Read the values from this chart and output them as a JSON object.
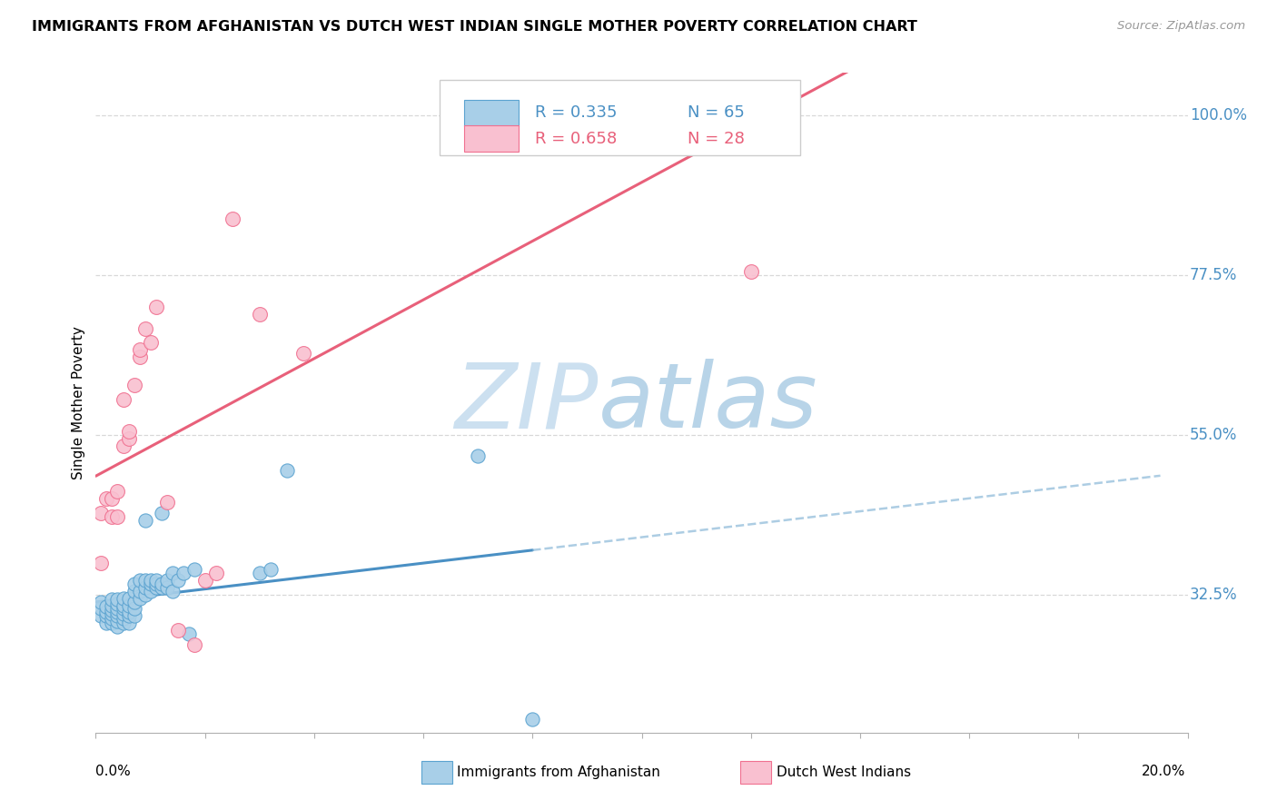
{
  "title": "IMMIGRANTS FROM AFGHANISTAN VS DUTCH WEST INDIAN SINGLE MOTHER POVERTY CORRELATION CHART",
  "source": "Source: ZipAtlas.com",
  "ylabel": "Single Mother Poverty",
  "y_ticks": [
    0.325,
    0.55,
    0.775,
    1.0
  ],
  "y_tick_labels": [
    "32.5%",
    "55.0%",
    "77.5%",
    "100.0%"
  ],
  "blue_scatter_color": "#a8cfe8",
  "blue_edge_color": "#5ba3d0",
  "pink_scatter_color": "#f9c0d0",
  "pink_edge_color": "#f07090",
  "line_blue_color": "#4a90c4",
  "line_pink_color": "#e8607a",
  "watermark_color": "#cce4f4",
  "blue_scatter_x": [
    0.001,
    0.001,
    0.001,
    0.002,
    0.002,
    0.002,
    0.002,
    0.003,
    0.003,
    0.003,
    0.003,
    0.003,
    0.003,
    0.004,
    0.004,
    0.004,
    0.004,
    0.004,
    0.004,
    0.004,
    0.005,
    0.005,
    0.005,
    0.005,
    0.005,
    0.005,
    0.006,
    0.006,
    0.006,
    0.006,
    0.006,
    0.007,
    0.007,
    0.007,
    0.007,
    0.007,
    0.008,
    0.008,
    0.008,
    0.009,
    0.009,
    0.009,
    0.009,
    0.01,
    0.01,
    0.01,
    0.011,
    0.011,
    0.011,
    0.012,
    0.012,
    0.012,
    0.013,
    0.013,
    0.014,
    0.014,
    0.015,
    0.016,
    0.017,
    0.018,
    0.03,
    0.032,
    0.035,
    0.07,
    0.08
  ],
  "blue_scatter_y": [
    0.295,
    0.305,
    0.315,
    0.285,
    0.295,
    0.3,
    0.308,
    0.285,
    0.292,
    0.298,
    0.303,
    0.31,
    0.318,
    0.28,
    0.288,
    0.295,
    0.3,
    0.305,
    0.312,
    0.318,
    0.285,
    0.292,
    0.298,
    0.305,
    0.31,
    0.32,
    0.285,
    0.295,
    0.3,
    0.31,
    0.32,
    0.295,
    0.305,
    0.315,
    0.33,
    0.34,
    0.32,
    0.33,
    0.345,
    0.325,
    0.335,
    0.345,
    0.43,
    0.33,
    0.34,
    0.345,
    0.335,
    0.34,
    0.345,
    0.335,
    0.34,
    0.44,
    0.335,
    0.345,
    0.33,
    0.355,
    0.345,
    0.355,
    0.27,
    0.36,
    0.355,
    0.36,
    0.5,
    0.52,
    0.15
  ],
  "pink_scatter_x": [
    0.001,
    0.001,
    0.002,
    0.003,
    0.003,
    0.004,
    0.004,
    0.005,
    0.005,
    0.006,
    0.006,
    0.007,
    0.008,
    0.008,
    0.009,
    0.01,
    0.011,
    0.013,
    0.015,
    0.018,
    0.02,
    0.022,
    0.025,
    0.03,
    0.038,
    0.07,
    0.09,
    0.12
  ],
  "pink_scatter_y": [
    0.37,
    0.44,
    0.46,
    0.435,
    0.46,
    0.435,
    0.47,
    0.6,
    0.535,
    0.545,
    0.555,
    0.62,
    0.66,
    0.67,
    0.7,
    0.68,
    0.73,
    0.455,
    0.275,
    0.255,
    0.345,
    0.355,
    0.855,
    0.72,
    0.665,
    1.0,
    1.0,
    0.78
  ],
  "xlim": [
    0.0,
    0.2
  ],
  "ylim": [
    0.13,
    1.06
  ]
}
